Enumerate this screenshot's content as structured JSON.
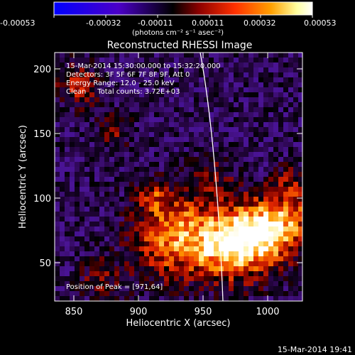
{
  "colorbar": {
    "tick_labels": [
      "-0.00053",
      "-0.00032",
      "-0.00011",
      "0.00011",
      "0.00032",
      "0.00053"
    ],
    "units": "(photons cm⁻² s⁻¹ asec⁻²)",
    "colors": [
      "#0000ff",
      "#4b00c8",
      "#000000",
      "#8b0000",
      "#ff3000",
      "#ffa000",
      "#ffffa0",
      "#ffffff"
    ]
  },
  "plot": {
    "title": "Reconstructed RHESSI Image",
    "xlabel": "Heliocentric X (arcsec)",
    "ylabel": "Heliocentric Y (arcsec)",
    "xlim": [
      833,
      1025
    ],
    "ylim": [
      19,
      212
    ],
    "xticks": [
      "850",
      "900",
      "950",
      "1000"
    ],
    "yticks": [
      "50",
      "100",
      "150",
      "200"
    ],
    "info_lines": [
      "15-Mar-2014 15:30:00.000 to 15:32:20.000",
      "Detectors: 3F 5F 6F 7F 8F 9F, Att 0",
      "Energy Range: 12.0 - 25.0 keV",
      "Clean     Total counts: 3.72E+03"
    ],
    "peak_label": "Position of Peak = [971,64]",
    "peak": [
      971,
      64
    ]
  },
  "footer": {
    "timestamp": "15-Mar-2014 19:41"
  }
}
